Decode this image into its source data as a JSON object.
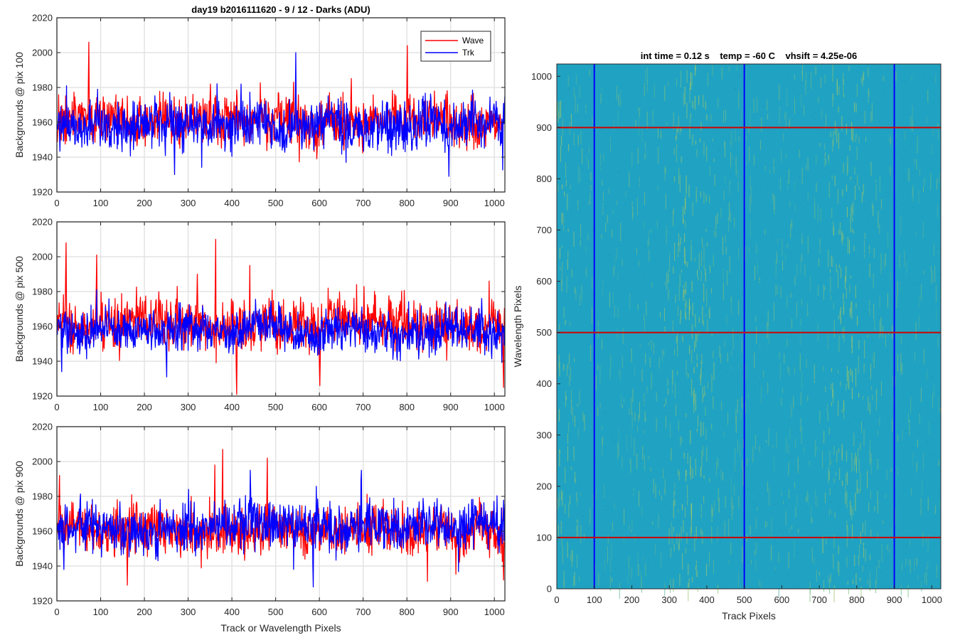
{
  "chart_data": [
    {
      "type": "line",
      "title": "day19 b2016111620 - 9 / 12 - Darks (ADU)",
      "xlabel": "",
      "ylabel": "Backgrounds @ pix 100",
      "xlim": [
        0,
        1024
      ],
      "ylim": [
        1920,
        2020
      ],
      "xticks": [
        0,
        100,
        200,
        300,
        400,
        500,
        600,
        700,
        800,
        900,
        1000
      ],
      "yticks": [
        1920,
        1940,
        1960,
        1980,
        2000,
        2020
      ],
      "grid": true,
      "legend": {
        "position": "top-right",
        "entries": [
          "Wave",
          "Trk"
        ]
      },
      "series": [
        {
          "name": "Wave",
          "color": "#ff0000",
          "mean": 1961,
          "spread": 7,
          "peaks": [
            [
              72,
              2006
            ],
            [
              800,
              2004
            ],
            [
              350,
              1982
            ],
            [
              540,
              1983
            ],
            [
              655,
              1944
            ]
          ]
        },
        {
          "name": "Trk",
          "color": "#0000ff",
          "mean": 1959,
          "spread": 7,
          "peaks": [
            [
              545,
              2000
            ],
            [
              268,
              1930
            ],
            [
              895,
              1929
            ],
            [
              660,
              1937
            ],
            [
              420,
              1982
            ]
          ]
        }
      ]
    },
    {
      "type": "line",
      "title": "",
      "xlabel": "",
      "ylabel": "Backgrounds @ pix 500",
      "xlim": [
        0,
        1024
      ],
      "ylim": [
        1920,
        2020
      ],
      "xticks": [
        0,
        100,
        200,
        300,
        400,
        500,
        600,
        700,
        800,
        900,
        1000
      ],
      "yticks": [
        1920,
        1940,
        1960,
        1980,
        2000,
        2020
      ],
      "grid": true,
      "series": [
        {
          "name": "Wave",
          "color": "#ff0000",
          "mean": 1962,
          "spread": 7,
          "peaks": [
            [
              20,
              2008
            ],
            [
              90,
              2001
            ],
            [
              362,
              2010
            ],
            [
              410,
              1921
            ],
            [
              440,
              1995
            ],
            [
              600,
              1926
            ],
            [
              1020,
              1925
            ],
            [
              320,
              1990
            ]
          ]
        },
        {
          "name": "Trk",
          "color": "#0000ff",
          "mean": 1957,
          "spread": 6,
          "peaks": [
            [
              250,
              1931
            ],
            [
              90,
              1981
            ],
            [
              970,
              1976
            ],
            [
              10,
              1934
            ]
          ]
        }
      ]
    },
    {
      "type": "line",
      "title": "",
      "xlabel": "Track or Wavelength Pixels",
      "ylabel": "Backgrounds @ pix 900",
      "xlim": [
        0,
        1024
      ],
      "ylim": [
        1920,
        2020
      ],
      "xticks": [
        0,
        100,
        200,
        300,
        400,
        500,
        600,
        700,
        800,
        900,
        1000
      ],
      "yticks": [
        1920,
        1940,
        1960,
        1980,
        2000,
        2020
      ],
      "grid": true,
      "series": [
        {
          "name": "Wave",
          "color": "#ff0000",
          "mean": 1960,
          "spread": 7,
          "peaks": [
            [
              378,
              2007
            ],
            [
              480,
              2002
            ],
            [
              160,
              1929
            ],
            [
              5,
              1992
            ],
            [
              1020,
              1932
            ],
            [
              360,
              1998
            ]
          ]
        },
        {
          "name": "Trk",
          "color": "#0000ff",
          "mean": 1962,
          "spread": 7,
          "peaks": [
            [
              585,
              1928
            ],
            [
              695,
              1995
            ],
            [
              300,
              1984
            ],
            [
              15,
              1938
            ]
          ]
        }
      ]
    },
    {
      "type": "heatmap",
      "title": "int time = 0.12 s    temp = -60 C    vhsift = 4.25e-06",
      "xlabel": "Track Pixels",
      "ylabel": "Wavelength Pixels",
      "xlim": [
        0,
        1024
      ],
      "ylim": [
        0,
        1024
      ],
      "xticks": [
        0,
        100,
        200,
        300,
        400,
        500,
        600,
        700,
        800,
        900,
        1000
      ],
      "yticks": [
        0,
        100,
        200,
        300,
        400,
        500,
        600,
        700,
        800,
        900,
        1000
      ],
      "colormap": {
        "base": "#20a3c2",
        "highlight": "#a8c860"
      },
      "marker_lines": {
        "vertical": {
          "x": [
            100,
            500,
            900
          ],
          "color": "#0000ff"
        },
        "horizontal": {
          "y": [
            100,
            500,
            900
          ],
          "color": "#d00000"
        }
      }
    }
  ]
}
